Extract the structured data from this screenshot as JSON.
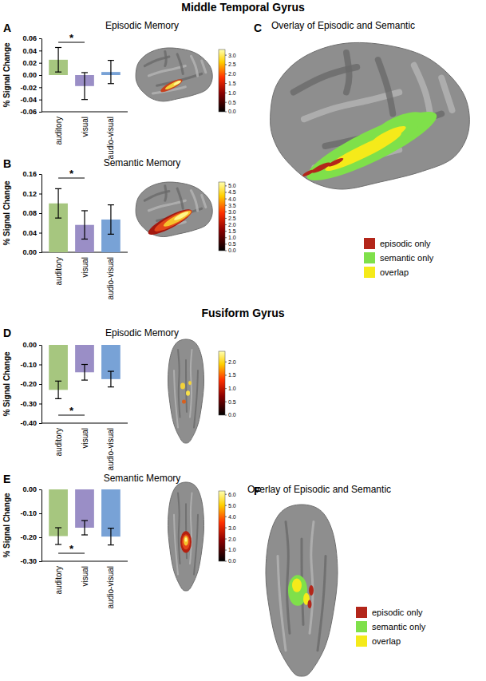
{
  "chart_data": [
    {
      "type": "bar",
      "panel": "A",
      "title": "Episodic Memory",
      "y_label": "% Signal Change",
      "categories": [
        "auditory",
        "visual",
        "audio-visual"
      ],
      "values": [
        0.025,
        -0.018,
        0.005
      ],
      "errors": [
        0.02,
        0.022,
        0.019
      ],
      "colors": [
        "#a6c67f",
        "#9a8ec6",
        "#78a2d6"
      ],
      "ylim": [
        -0.06,
        0.06
      ],
      "yticks": [
        {
          "value": -0.06,
          "label": "-0.06"
        },
        {
          "value": -0.04,
          "label": "-0.04"
        },
        {
          "value": -0.02,
          "label": "-0.02"
        },
        {
          "value": 0,
          "label": "0.00"
        },
        {
          "value": 0.02,
          "label": "0.02"
        },
        {
          "value": 0.04,
          "label": "0.04"
        },
        {
          "value": 0.06,
          "label": "0.06"
        }
      ],
      "significance": {
        "between": [
          0,
          1
        ],
        "label": "*"
      },
      "colorbar": {
        "range": [
          0,
          3.3
        ],
        "ticks": [
          {
            "value": 0,
            "label": "0.0"
          },
          {
            "value": 0.5,
            "label": "0.5"
          },
          {
            "value": 1,
            "label": "1.0"
          },
          {
            "value": 1.5,
            "label": "1.5"
          },
          {
            "value": 2,
            "label": "2.0"
          },
          {
            "value": 2.5,
            "label": "2.5"
          },
          {
            "value": 3,
            "label": "3.0"
          }
        ]
      }
    },
    {
      "type": "bar",
      "panel": "B",
      "title": "Semantic Memory",
      "y_label": "% Signal Change",
      "categories": [
        "auditory",
        "visual",
        "audio-visual"
      ],
      "values": [
        0.1,
        0.056,
        0.067
      ],
      "errors": [
        0.03,
        0.029,
        0.03
      ],
      "colors": [
        "#a6c67f",
        "#9a8ec6",
        "#78a2d6"
      ],
      "ylim": [
        0,
        0.16
      ],
      "yticks": [
        {
          "value": 0,
          "label": "0.00"
        },
        {
          "value": 0.04,
          "label": "0.04"
        },
        {
          "value": 0.08,
          "label": "0.08"
        },
        {
          "value": 0.12,
          "label": "0.12"
        },
        {
          "value": 0.16,
          "label": "0.16"
        }
      ],
      "significance": {
        "between": [
          0,
          1
        ],
        "label": "*"
      },
      "colorbar": {
        "range": [
          0,
          5.3
        ],
        "ticks": [
          {
            "value": 0,
            "label": "0.0"
          },
          {
            "value": 0.5,
            "label": "0.5"
          },
          {
            "value": 1,
            "label": "1.0"
          },
          {
            "value": 1.5,
            "label": "1.5"
          },
          {
            "value": 2,
            "label": "2.0"
          },
          {
            "value": 2.5,
            "label": "2.5"
          },
          {
            "value": 3,
            "label": "3.0"
          },
          {
            "value": 3.5,
            "label": "3.5"
          },
          {
            "value": 4,
            "label": "4.0"
          },
          {
            "value": 4.5,
            "label": "4.5"
          },
          {
            "value": 5,
            "label": "5.0"
          }
        ]
      }
    },
    {
      "type": "bar",
      "panel": "D",
      "title": "Episodic Memory",
      "y_label": "% Signal Change",
      "categories": [
        "auditory",
        "visual",
        "audio-visual"
      ],
      "values": [
        -0.23,
        -0.14,
        -0.175
      ],
      "errors": [
        0.045,
        0.04,
        0.04
      ],
      "colors": [
        "#a6c67f",
        "#9a8ec6",
        "#78a2d6"
      ],
      "ylim": [
        -0.4,
        0
      ],
      "yticks": [
        {
          "value": -0.4,
          "label": "-0.40"
        },
        {
          "value": -0.3,
          "label": "-0.30"
        },
        {
          "value": -0.2,
          "label": "-0.20"
        },
        {
          "value": -0.1,
          "label": "-0.10"
        },
        {
          "value": 0,
          "label": "0.00"
        }
      ],
      "significance": {
        "between": [
          0,
          1
        ],
        "label": "*"
      },
      "colorbar": {
        "range": [
          0,
          2.4
        ],
        "ticks": [
          {
            "value": 0,
            "label": "0.0"
          },
          {
            "value": 0.5,
            "label": "0.5"
          },
          {
            "value": 1,
            "label": "1.0"
          },
          {
            "value": 1.5,
            "label": "1.5"
          },
          {
            "value": 2,
            "label": "2.0"
          }
        ]
      }
    },
    {
      "type": "bar",
      "panel": "E",
      "title": "Semantic Memory",
      "y_label": "% Signal Change",
      "categories": [
        "auditory",
        "visual",
        "audio-visual"
      ],
      "values": [
        -0.195,
        -0.16,
        -0.197
      ],
      "errors": [
        0.035,
        0.03,
        0.035
      ],
      "colors": [
        "#a6c67f",
        "#9a8ec6",
        "#78a2d6"
      ],
      "ylim": [
        -0.3,
        0
      ],
      "yticks": [
        {
          "value": -0.3,
          "label": "-0.30"
        },
        {
          "value": -0.2,
          "label": "-0.20"
        },
        {
          "value": -0.1,
          "label": "-0.10"
        },
        {
          "value": 0,
          "label": "0.00"
        }
      ],
      "significance": {
        "between": [
          0,
          1
        ],
        "label": "*"
      },
      "colorbar": {
        "range": [
          0,
          6.3
        ],
        "ticks": [
          {
            "value": 0,
            "label": "0.0"
          },
          {
            "value": 1,
            "label": "1.0"
          },
          {
            "value": 2,
            "label": "2.0"
          },
          {
            "value": 3,
            "label": "3.0"
          },
          {
            "value": 4,
            "label": "4.0"
          },
          {
            "value": 5,
            "label": "5.0"
          },
          {
            "value": 6,
            "label": "6.0"
          }
        ]
      }
    }
  ],
  "sections": [
    {
      "title": "Middle Temporal Gyrus"
    },
    {
      "title": "Fusiform Gyrus"
    }
  ],
  "overlays": [
    {
      "panel": "C",
      "title": "Overlay of Episodic and Semantic",
      "legend": [
        {
          "label": "episodic only",
          "color": "#b3261a"
        },
        {
          "label": "semantic only",
          "color": "#7fe04a"
        },
        {
          "label": "overlap",
          "color": "#f5ea1a"
        }
      ]
    },
    {
      "panel": "F",
      "title": "Overlay of Episodic and Semantic",
      "legend": [
        {
          "label": "episodic only",
          "color": "#b3261a"
        },
        {
          "label": "semantic only",
          "color": "#7fe04a"
        },
        {
          "label": "overlap",
          "color": "#f5ea1a"
        }
      ]
    }
  ]
}
